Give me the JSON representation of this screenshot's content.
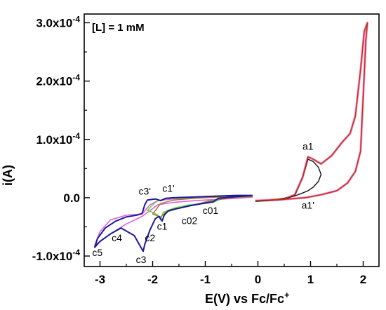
{
  "chart_data": {
    "type": "line",
    "concentration_label": "[L] = 1 mM",
    "xlabel_main": "E(V) vs Fc/Fc",
    "xlabel_sup": "+",
    "ylabel": "i(A)",
    "xlim": [
      -3.3,
      2.3
    ],
    "ylim": [
      -0.000118,
      0.000315
    ],
    "x_ticks": [
      -3,
      -2,
      -1,
      0,
      1,
      2
    ],
    "x_tick_labels": [
      "-3",
      "-2",
      "-1",
      "0",
      "1",
      "2"
    ],
    "y_ticks": [
      -0.0001,
      0.0,
      0.0001,
      0.0002,
      0.0003
    ],
    "y_tick_labels": [
      {
        "mantissa": "-1.0x10",
        "exp": "-4"
      },
      {
        "mantissa": "0.0",
        "exp": ""
      },
      {
        "mantissa": "1.0x10",
        "exp": "-4"
      },
      {
        "mantissa": "2.0x10",
        "exp": "-4"
      },
      {
        "mantissa": "3.0x10",
        "exp": "-4"
      }
    ],
    "annotations": [
      {
        "text": "a1",
        "x": 0.95,
        "y": 8.2e-05
      },
      {
        "text": "a1'",
        "x": 0.95,
        "y": -1.9e-05
      },
      {
        "text": "c01",
        "x": -0.9,
        "y": -2.8e-05
      },
      {
        "text": "c02",
        "x": -1.3,
        "y": -4.5e-05
      },
      {
        "text": "c1",
        "x": -1.82,
        "y": -5.5e-05
      },
      {
        "text": "c1'",
        "x": -1.7,
        "y": 1e-05
      },
      {
        "text": "c2",
        "x": -2.05,
        "y": -7.5e-05
      },
      {
        "text": "c3",
        "x": -2.22,
        "y": -0.000112
      },
      {
        "text": "c3'",
        "x": -2.15,
        "y": 5e-06
      },
      {
        "text": "c4",
        "x": -2.68,
        "y": -7.5e-05
      },
      {
        "text": "c5",
        "x": -3.05,
        "y": -0.0001
      }
    ],
    "series": [
      {
        "color": "#e060e0",
        "width": 1.6,
        "x": [
          -0.1,
          -0.4,
          -0.8,
          -1.2,
          -1.6,
          -1.9,
          -2.05,
          -2.2,
          -2.5,
          -2.8,
          -3.0,
          -3.1,
          -3.0,
          -2.8,
          -2.5,
          -2.2,
          -2.05,
          -1.9,
          -1.6,
          -1.2,
          -0.8,
          -0.4,
          -0.1
        ],
        "y": [
          1e-06,
          -1e-06,
          -3e-06,
          -5e-06,
          -8e-06,
          -1.2e-05,
          -2.2e-05,
          -3.2e-05,
          -4.5e-05,
          -6.2e-05,
          -7.5e-05,
          -8.2e-05,
          -5.8e-05,
          -3.8e-05,
          -3e-05,
          -2.8e-05,
          -1.2e-05,
          -5e-06,
          -2e-06,
          0.0,
          2e-06,
          3e-06,
          3e-06
        ]
      },
      {
        "color": "#6ad63a",
        "width": 1.6,
        "x": [
          -0.1,
          -0.4,
          -0.7,
          -0.85,
          -1.0,
          -1.3,
          -1.6,
          -1.8,
          -1.85,
          -1.9,
          -2.0,
          -2.1,
          -2.0,
          -1.9,
          -1.7,
          -1.4,
          -1.0,
          -0.7,
          -0.4,
          -0.1
        ],
        "y": [
          3e-06,
          2e-06,
          -2e-06,
          -8e-06,
          -1e-05,
          -1.2e-05,
          -1.8e-05,
          -2.5e-05,
          -3.8e-05,
          -3e-05,
          -2.5e-05,
          -2.2e-05,
          -1.2e-05,
          -5e-06,
          -1e-06,
          0.0,
          2e-06,
          3e-06,
          3e-06,
          3e-06
        ]
      },
      {
        "color": "#a07a30",
        "width": 1.5,
        "x": [
          -0.1,
          -0.5,
          -0.9,
          -1.2,
          -1.5,
          -1.75,
          -1.85,
          -2.0,
          -1.85,
          -1.6,
          -1.2,
          -0.8,
          -0.4,
          -0.1
        ],
        "y": [
          2e-06,
          0.0,
          -5e-06,
          -1.2e-05,
          -1.8e-05,
          -2.5e-05,
          -3.3e-05,
          -2.8e-05,
          -1e-05,
          -4e-06,
          -1e-06,
          1e-06,
          2e-06,
          2e-06
        ]
      },
      {
        "color": "#1a1a9a",
        "width": 2.0,
        "x": [
          -0.1,
          -0.4,
          -0.75,
          -0.85,
          -1.0,
          -1.3,
          -1.5,
          -1.7,
          -1.78,
          -1.82,
          -1.88,
          -1.95,
          -2.05,
          -2.15,
          -2.18,
          -2.35,
          -2.6,
          -2.8,
          -3.0,
          -3.1,
          -3.05,
          -2.9,
          -2.7,
          -2.5,
          -2.3,
          -2.2,
          -2.15,
          -2.1,
          -1.95,
          -1.85,
          -1.75,
          -1.6,
          -1.3,
          -1.0,
          -0.7,
          -0.4,
          -0.1
        ],
        "y": [
          4e-06,
          2e-06,
          -1e-06,
          -7e-06,
          -9e-06,
          -1.4e-05,
          -1.8e-05,
          -2.2e-05,
          -3e-05,
          -4e-05,
          -3.2e-05,
          -3.6e-05,
          -5.5e-05,
          -8e-05,
          -9.2e-05,
          -6.5e-05,
          -5.2e-05,
          -6.2e-05,
          -7.5e-05,
          -8.5e-05,
          -7e-05,
          -5.2e-05,
          -4e-05,
          -3.3e-05,
          -3e-05,
          -2.7e-05,
          -1.2e-05,
          -4e-06,
          -2e-06,
          -5e-06,
          -1e-06,
          0.0,
          1e-06,
          2e-06,
          3e-06,
          4e-06,
          4e-06
        ]
      },
      {
        "color": "#ff88cc",
        "width": 3.2,
        "x": [
          -0.05,
          0.2,
          0.5,
          0.7,
          0.85,
          0.95,
          1.05,
          1.2,
          1.4,
          1.6,
          1.75,
          1.85,
          1.95,
          2.02,
          2.08,
          2.05,
          1.95,
          1.85,
          1.7,
          1.5,
          1.2,
          0.9,
          0.6,
          0.3,
          0.0,
          -0.05
        ],
        "y": [
          -5e-06,
          -4e-06,
          -2e-06,
          5e-06,
          3.5e-05,
          7e-05,
          6.6e-05,
          5.8e-05,
          7.2e-05,
          9.5e-05,
          0.00011,
          0.00014,
          0.00022,
          0.000285,
          0.0003,
          0.00027,
          8e-05,
          4.5e-05,
          2.5e-05,
          1.2e-05,
          5e-06,
          0.0,
          -2e-06,
          -4e-06,
          -5e-06,
          -5e-06
        ]
      },
      {
        "color": "#111111",
        "width": 1.4,
        "x": [
          -0.05,
          0.2,
          0.5,
          0.7,
          0.85,
          0.95,
          1.05,
          1.15,
          1.2,
          1.15,
          1.05,
          0.95,
          0.85,
          0.7,
          0.5,
          0.3,
          0.0,
          -0.05
        ],
        "y": [
          -6e-06,
          -5e-06,
          -3e-06,
          4e-06,
          3.5e-05,
          6.6e-05,
          6.2e-05,
          5.2e-05,
          4e-05,
          2.8e-05,
          1.8e-05,
          1.2e-05,
          8e-06,
          3e-06,
          -1e-06,
          -4e-06,
          -6e-06,
          -6e-06
        ]
      },
      {
        "color": "#b83818",
        "width": 1.5,
        "x": [
          -0.05,
          0.2,
          0.5,
          0.7,
          0.85,
          0.95,
          1.05,
          1.2,
          1.4,
          1.6,
          1.75,
          1.85,
          1.95,
          2.02,
          2.08,
          2.05,
          1.95,
          1.85,
          1.7,
          1.5,
          1.2,
          0.9,
          0.6,
          0.3,
          0.0,
          -0.05
        ],
        "y": [
          -5e-06,
          -4e-06,
          -2e-06,
          5e-06,
          3.5e-05,
          7e-05,
          6.6e-05,
          5.8e-05,
          7.2e-05,
          9.5e-05,
          0.00011,
          0.00014,
          0.00022,
          0.000285,
          0.0003,
          0.00027,
          8e-05,
          4.5e-05,
          2.5e-05,
          1.2e-05,
          5e-06,
          0.0,
          -2e-06,
          -4e-06,
          -5e-06,
          -5e-06
        ]
      }
    ]
  }
}
